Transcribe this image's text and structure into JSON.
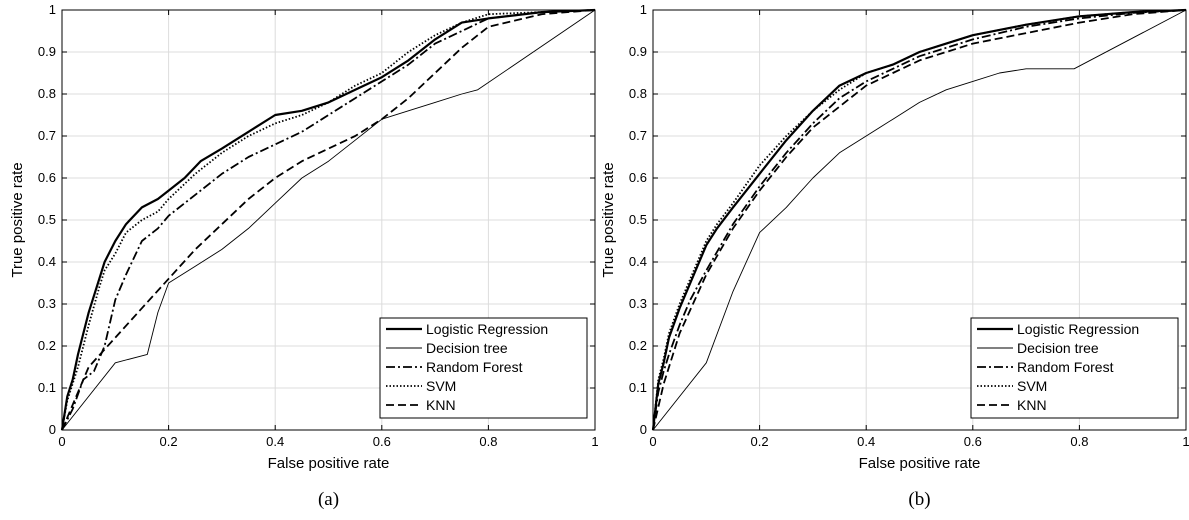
{
  "chart_data": [
    {
      "type": "line",
      "caption": "(a)",
      "xlabel": "False positive rate",
      "ylabel": "True positive rate",
      "xlim": [
        0,
        1
      ],
      "ylim": [
        0,
        1
      ],
      "xticks": [
        0,
        0.2,
        0.4,
        0.6,
        0.8,
        1
      ],
      "xtick_labels": [
        "0",
        "0.2",
        "0.4",
        "0.6",
        "0.8",
        "1"
      ],
      "yticks": [
        0,
        0.1,
        0.2,
        0.3,
        0.4,
        0.5,
        0.6,
        0.7,
        0.8,
        0.9,
        1
      ],
      "ytick_labels": [
        "0",
        "0.1",
        "0.2",
        "0.3",
        "0.4",
        "0.5",
        "0.6",
        "0.7",
        "0.8",
        "0.9",
        "1"
      ],
      "grid": true,
      "legend": "bottom-right",
      "series": [
        {
          "name": "Logistic Regression",
          "style": "solid-thick",
          "x": [
            0,
            0.01,
            0.02,
            0.03,
            0.05,
            0.07,
            0.08,
            0.1,
            0.12,
            0.15,
            0.18,
            0.2,
            0.23,
            0.26,
            0.3,
            0.35,
            0.4,
            0.45,
            0.5,
            0.55,
            0.6,
            0.65,
            0.7,
            0.75,
            0.8,
            0.9,
            1.0
          ],
          "y": [
            0,
            0.08,
            0.12,
            0.18,
            0.28,
            0.36,
            0.4,
            0.45,
            0.49,
            0.53,
            0.55,
            0.57,
            0.6,
            0.64,
            0.67,
            0.71,
            0.75,
            0.76,
            0.78,
            0.81,
            0.84,
            0.88,
            0.93,
            0.97,
            0.98,
            0.995,
            1.0
          ]
        },
        {
          "name": "Decision tree",
          "style": "solid-thin",
          "x": [
            0,
            0.1,
            0.16,
            0.18,
            0.2,
            0.25,
            0.3,
            0.35,
            0.4,
            0.45,
            0.5,
            0.55,
            0.6,
            0.65,
            0.7,
            0.75,
            0.78,
            1.0
          ],
          "y": [
            0,
            0.16,
            0.18,
            0.28,
            0.35,
            0.39,
            0.43,
            0.48,
            0.54,
            0.6,
            0.64,
            0.69,
            0.74,
            0.76,
            0.78,
            0.8,
            0.81,
            1.0
          ]
        },
        {
          "name": "Random Forest",
          "style": "dashdot",
          "x": [
            0,
            0.02,
            0.04,
            0.06,
            0.08,
            0.1,
            0.12,
            0.15,
            0.18,
            0.2,
            0.25,
            0.3,
            0.35,
            0.4,
            0.45,
            0.5,
            0.55,
            0.6,
            0.65,
            0.7,
            0.8,
            0.9,
            1.0
          ],
          "y": [
            0,
            0.05,
            0.12,
            0.14,
            0.2,
            0.31,
            0.37,
            0.45,
            0.48,
            0.51,
            0.56,
            0.61,
            0.65,
            0.68,
            0.71,
            0.75,
            0.79,
            0.83,
            0.87,
            0.92,
            0.98,
            0.995,
            1.0
          ]
        },
        {
          "name": "SVM",
          "style": "dotted",
          "x": [
            0,
            0.01,
            0.03,
            0.05,
            0.07,
            0.08,
            0.1,
            0.12,
            0.15,
            0.18,
            0.2,
            0.25,
            0.3,
            0.35,
            0.4,
            0.45,
            0.5,
            0.55,
            0.6,
            0.65,
            0.7,
            0.75,
            0.8,
            0.9,
            1.0
          ],
          "y": [
            0,
            0.07,
            0.15,
            0.25,
            0.34,
            0.38,
            0.42,
            0.47,
            0.5,
            0.52,
            0.55,
            0.61,
            0.66,
            0.7,
            0.73,
            0.75,
            0.78,
            0.82,
            0.85,
            0.9,
            0.94,
            0.97,
            0.99,
            0.995,
            1.0
          ]
        },
        {
          "name": "KNN",
          "style": "dashed",
          "x": [
            0,
            0.05,
            0.1,
            0.15,
            0.2,
            0.25,
            0.3,
            0.35,
            0.4,
            0.45,
            0.5,
            0.55,
            0.6,
            0.65,
            0.7,
            0.75,
            0.8,
            0.9,
            1.0
          ],
          "y": [
            0,
            0.15,
            0.22,
            0.29,
            0.36,
            0.43,
            0.49,
            0.55,
            0.6,
            0.64,
            0.67,
            0.7,
            0.74,
            0.79,
            0.85,
            0.91,
            0.96,
            0.99,
            1.0
          ]
        }
      ]
    },
    {
      "type": "line",
      "caption": "(b)",
      "xlabel": "False positive rate",
      "ylabel": "True positive rate",
      "xlim": [
        0,
        1
      ],
      "ylim": [
        0,
        1
      ],
      "xticks": [
        0,
        0.2,
        0.4,
        0.6,
        0.8,
        1
      ],
      "xtick_labels": [
        "0",
        "0.2",
        "0.4",
        "0.6",
        "0.8",
        "1"
      ],
      "yticks": [
        0,
        0.1,
        0.2,
        0.3,
        0.4,
        0.5,
        0.6,
        0.7,
        0.8,
        0.9,
        1
      ],
      "ytick_labels": [
        "0",
        "0.1",
        "0.2",
        "0.3",
        "0.4",
        "0.5",
        "0.6",
        "0.7",
        "0.8",
        "0.9",
        "1"
      ],
      "grid": true,
      "legend": "bottom-right",
      "series": [
        {
          "name": "Logistic Regression",
          "style": "solid-thick",
          "x": [
            0,
            0.01,
            0.02,
            0.03,
            0.05,
            0.07,
            0.1,
            0.12,
            0.15,
            0.2,
            0.25,
            0.3,
            0.35,
            0.4,
            0.45,
            0.5,
            0.55,
            0.6,
            0.7,
            0.8,
            0.9,
            1.0
          ],
          "y": [
            0,
            0.11,
            0.16,
            0.22,
            0.29,
            0.35,
            0.44,
            0.48,
            0.53,
            0.61,
            0.69,
            0.76,
            0.82,
            0.85,
            0.87,
            0.9,
            0.92,
            0.94,
            0.965,
            0.985,
            0.995,
            1.0
          ]
        },
        {
          "name": "Decision tree",
          "style": "solid-thin",
          "x": [
            0,
            0.1,
            0.15,
            0.2,
            0.25,
            0.3,
            0.35,
            0.4,
            0.45,
            0.5,
            0.55,
            0.6,
            0.65,
            0.7,
            0.79,
            1.0
          ],
          "y": [
            0,
            0.16,
            0.33,
            0.47,
            0.53,
            0.6,
            0.66,
            0.7,
            0.74,
            0.78,
            0.81,
            0.83,
            0.85,
            0.86,
            0.86,
            1.0
          ]
        },
        {
          "name": "Random Forest",
          "style": "dashdot",
          "x": [
            0,
            0.01,
            0.02,
            0.03,
            0.05,
            0.07,
            0.1,
            0.15,
            0.2,
            0.25,
            0.3,
            0.35,
            0.4,
            0.45,
            0.5,
            0.55,
            0.6,
            0.7,
            0.8,
            0.9,
            1.0
          ],
          "y": [
            0,
            0.09,
            0.14,
            0.18,
            0.25,
            0.31,
            0.38,
            0.49,
            0.58,
            0.66,
            0.73,
            0.79,
            0.83,
            0.86,
            0.89,
            0.91,
            0.93,
            0.96,
            0.98,
            0.993,
            1.0
          ]
        },
        {
          "name": "SVM",
          "style": "dotted",
          "x": [
            0,
            0.01,
            0.02,
            0.03,
            0.05,
            0.07,
            0.1,
            0.12,
            0.15,
            0.2,
            0.25,
            0.3,
            0.35,
            0.4,
            0.45,
            0.5,
            0.55,
            0.6,
            0.7,
            0.8,
            0.9,
            1.0
          ],
          "y": [
            0,
            0.12,
            0.17,
            0.23,
            0.3,
            0.36,
            0.45,
            0.49,
            0.54,
            0.63,
            0.7,
            0.76,
            0.81,
            0.85,
            0.87,
            0.9,
            0.92,
            0.94,
            0.965,
            0.985,
            0.995,
            1.0
          ]
        },
        {
          "name": "KNN",
          "style": "dashed",
          "x": [
            0,
            0.02,
            0.05,
            0.1,
            0.15,
            0.2,
            0.25,
            0.3,
            0.35,
            0.4,
            0.45,
            0.5,
            0.55,
            0.6,
            0.7,
            0.8,
            0.9,
            1.0
          ],
          "y": [
            0,
            0.11,
            0.23,
            0.37,
            0.48,
            0.57,
            0.65,
            0.72,
            0.77,
            0.82,
            0.85,
            0.88,
            0.9,
            0.92,
            0.945,
            0.97,
            0.99,
            1.0
          ]
        }
      ]
    }
  ]
}
